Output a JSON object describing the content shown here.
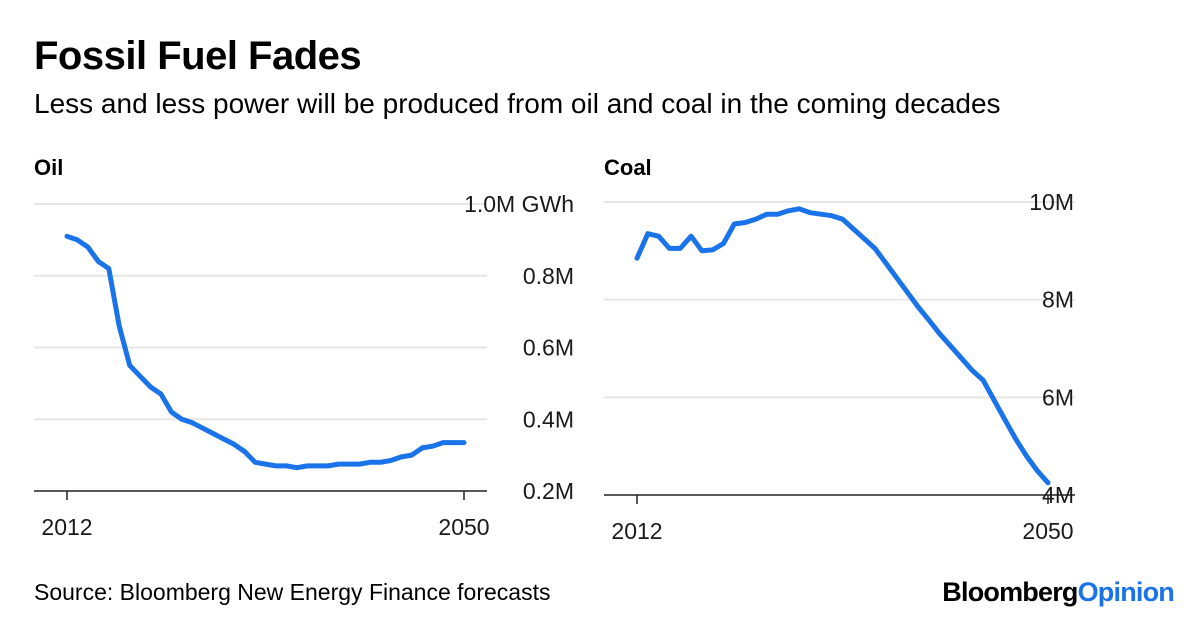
{
  "title": "Fossil Fuel Fades",
  "subtitle": "Less and less power will be produced from oil and coal in the coming decades",
  "source": "Source: Bloomberg New Energy Finance forecasts",
  "brand": {
    "part1": "Bloomberg",
    "part2": "Opinion",
    "accent_color": "#1a73e8"
  },
  "line_color": "#1a73e8",
  "chart_data": [
    {
      "type": "line",
      "title": "Oil",
      "ylim": [
        0.2,
        1.0
      ],
      "yticks": [
        {
          "value": 1.0,
          "label": "1.0M GWh"
        },
        {
          "value": 0.8,
          "label": "0.8M"
        },
        {
          "value": 0.6,
          "label": "0.6M"
        },
        {
          "value": 0.4,
          "label": "0.4M"
        },
        {
          "value": 0.2,
          "label": "0.2M"
        }
      ],
      "xlim": [
        2012,
        2050
      ],
      "xticks": [
        {
          "value": 2012,
          "label": "2012"
        },
        {
          "value": 2050,
          "label": "2050"
        }
      ],
      "grid": true,
      "x": [
        2012,
        2013,
        2014,
        2015,
        2016,
        2017,
        2018,
        2019,
        2020,
        2021,
        2022,
        2023,
        2024,
        2025,
        2026,
        2027,
        2028,
        2029,
        2030,
        2031,
        2032,
        2033,
        2034,
        2035,
        2036,
        2037,
        2038,
        2039,
        2040,
        2041,
        2042,
        2043,
        2044,
        2045,
        2046,
        2047,
        2048,
        2049,
        2050
      ],
      "series": [
        {
          "values": [
            0.91,
            0.9,
            0.88,
            0.84,
            0.82,
            0.66,
            0.55,
            0.52,
            0.49,
            0.47,
            0.42,
            0.4,
            0.39,
            0.375,
            0.36,
            0.345,
            0.33,
            0.31,
            0.28,
            0.275,
            0.27,
            0.27,
            0.265,
            0.27,
            0.27,
            0.27,
            0.275,
            0.275,
            0.275,
            0.28,
            0.28,
            0.285,
            0.295,
            0.3,
            0.32,
            0.325,
            0.335,
            0.335,
            0.335
          ]
        }
      ]
    },
    {
      "type": "line",
      "title": "Coal",
      "ylim": [
        4,
        10
      ],
      "yticks": [
        {
          "value": 10,
          "label": "10M"
        },
        {
          "value": 8,
          "label": "8M"
        },
        {
          "value": 6,
          "label": "6M"
        },
        {
          "value": 4,
          "label": "4M"
        }
      ],
      "xlim": [
        2012,
        2050
      ],
      "xticks": [
        {
          "value": 2012,
          "label": "2012"
        },
        {
          "value": 2050,
          "label": "2050"
        }
      ],
      "grid": true,
      "x": [
        2012,
        2013,
        2014,
        2015,
        2016,
        2017,
        2018,
        2019,
        2020,
        2021,
        2022,
        2023,
        2024,
        2025,
        2026,
        2027,
        2028,
        2029,
        2030,
        2031,
        2032,
        2033,
        2034,
        2035,
        2036,
        2037,
        2038,
        2039,
        2040,
        2041,
        2042,
        2043,
        2044,
        2045,
        2046,
        2047,
        2048,
        2049,
        2050
      ],
      "series": [
        {
          "values": [
            8.85,
            9.35,
            9.3,
            9.05,
            9.05,
            9.3,
            9.0,
            9.02,
            9.15,
            9.55,
            9.58,
            9.65,
            9.75,
            9.75,
            9.82,
            9.86,
            9.78,
            9.75,
            9.72,
            9.65,
            9.45,
            9.25,
            9.05,
            8.75,
            8.45,
            8.15,
            7.85,
            7.58,
            7.3,
            7.05,
            6.8,
            6.55,
            6.35,
            5.95,
            5.55,
            5.15,
            4.8,
            4.5,
            4.25
          ]
        }
      ]
    }
  ]
}
